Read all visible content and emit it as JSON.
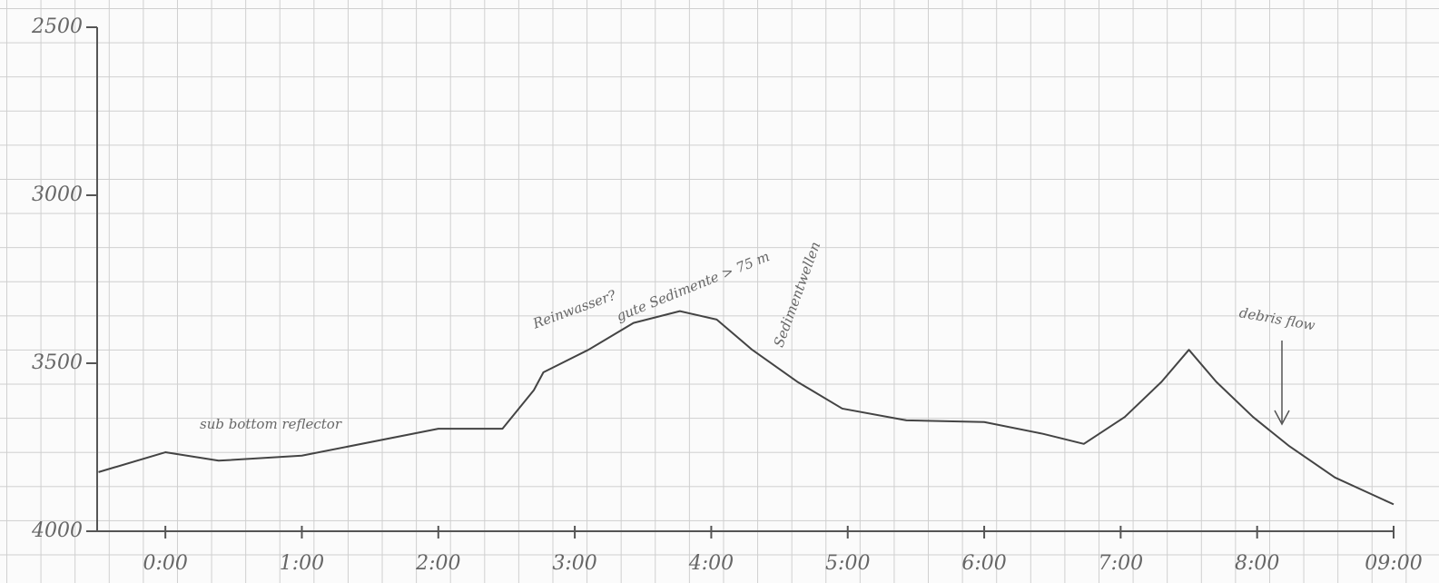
{
  "chart_data": {
    "type": "line",
    "x": [
      -0.49,
      0,
      0.39,
      1.0,
      2.0,
      2.47,
      2.7,
      2.77,
      3.1,
      3.43,
      3.77,
      4.04,
      4.3,
      4.63,
      4.96,
      5.43,
      6.0,
      6.43,
      6.73,
      7.03,
      7.3,
      7.5,
      7.7,
      7.97,
      8.23,
      8.57,
      9.0
    ],
    "series": [
      {
        "name": null,
        "color": "#444444",
        "values": [
          3824,
          3765,
          3790,
          3775,
          3695,
          3695,
          3580,
          3527,
          3460,
          3380,
          3345,
          3370,
          3460,
          3555,
          3635,
          3670,
          3675,
          3710,
          3740,
          3660,
          3555,
          3460,
          3555,
          3660,
          3745,
          3840,
          3920
        ]
      }
    ],
    "xlim": [
      -0.5,
      9
    ],
    "xticks": [
      {
        "value": 0,
        "label": "0:00"
      },
      {
        "value": 1,
        "label": "1:00"
      },
      {
        "value": 2,
        "label": "2:00"
      },
      {
        "value": 3,
        "label": "3:00"
      },
      {
        "value": 4,
        "label": "4:00"
      },
      {
        "value": 5,
        "label": "5:00"
      },
      {
        "value": 6,
        "label": "6:00"
      },
      {
        "value": 7,
        "label": "7:00"
      },
      {
        "value": 8,
        "label": "8:00"
      },
      {
        "value": 9,
        "label": "09:00"
      }
    ],
    "ylim": [
      4000,
      2500
    ],
    "yticks": [
      2500,
      3000,
      3500,
      4000
    ],
    "annotations": [
      "sub bottom reflector",
      "Reinwasser?",
      "gute Sedimente > 75 m",
      "Sedimentwellen",
      "debris flow"
    ]
  }
}
